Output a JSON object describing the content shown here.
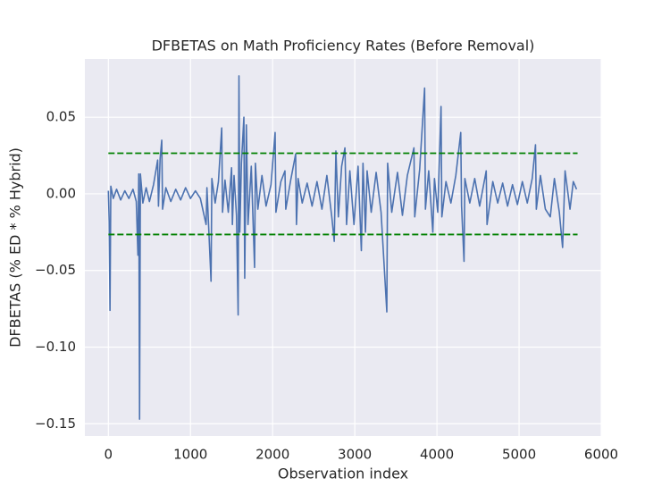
{
  "chart_data": {
    "type": "line",
    "title": "DFBETAS on Math Proficiency Rates (Before Removal)",
    "x_label": "Observation index",
    "y_label": "DFBETAS (% ED * % Hybrid)",
    "x": [
      0,
      10,
      20,
      30,
      60,
      100,
      150,
      200,
      250,
      300,
      340,
      360,
      370,
      380,
      390,
      420,
      460,
      500,
      550,
      600,
      610,
      630,
      650,
      660,
      700,
      760,
      820,
      880,
      940,
      1000,
      1060,
      1120,
      1190,
      1200,
      1250,
      1260,
      1300,
      1340,
      1380,
      1390,
      1420,
      1460,
      1500,
      1510,
      1530,
      1560,
      1580,
      1590,
      1600,
      1620,
      1650,
      1660,
      1680,
      1700,
      1740,
      1780,
      1790,
      1820,
      1870,
      1920,
      1980,
      2030,
      2040,
      2100,
      2150,
      2160,
      2220,
      2280,
      2290,
      2310,
      2360,
      2420,
      2480,
      2540,
      2600,
      2660,
      2720,
      2750,
      2770,
      2800,
      2840,
      2880,
      2900,
      2940,
      2990,
      3040,
      3080,
      3100,
      3130,
      3150,
      3200,
      3260,
      3320,
      3390,
      3400,
      3450,
      3520,
      3580,
      3640,
      3720,
      3730,
      3790,
      3850,
      3860,
      3900,
      3950,
      3970,
      4010,
      4050,
      4060,
      4110,
      4170,
      4230,
      4290,
      4300,
      4330,
      4340,
      4400,
      4460,
      4520,
      4600,
      4610,
      4680,
      4740,
      4800,
      4860,
      4920,
      4980,
      5040,
      5100,
      5160,
      5200,
      5210,
      5260,
      5320,
      5380,
      5430,
      5490,
      5530,
      5560,
      5620,
      5660,
      5700
    ],
    "series": [
      {
        "color": "#4c72b0",
        "values": [
          0.002,
          -0.018,
          -0.076,
          0.005,
          -0.003,
          0.003,
          -0.004,
          0.002,
          -0.003,
          0.003,
          -0.005,
          -0.04,
          0.013,
          -0.147,
          0.013,
          -0.006,
          0.004,
          -0.005,
          0.006,
          0.022,
          -0.008,
          0.023,
          0.035,
          -0.01,
          0.004,
          -0.005,
          0.003,
          -0.004,
          0.004,
          -0.003,
          0.002,
          -0.003,
          -0.02,
          0.004,
          -0.057,
          0.01,
          -0.006,
          0.008,
          0.043,
          -0.012,
          0.009,
          -0.012,
          0.017,
          -0.02,
          0.012,
          -0.014,
          -0.079,
          0.077,
          -0.025,
          0.02,
          0.05,
          -0.055,
          0.045,
          -0.02,
          0.018,
          -0.048,
          0.02,
          -0.01,
          0.012,
          -0.008,
          0.006,
          0.04,
          -0.012,
          0.008,
          0.015,
          -0.01,
          0.009,
          0.026,
          -0.02,
          0.01,
          -0.006,
          0.007,
          -0.008,
          0.008,
          -0.01,
          0.012,
          -0.015,
          -0.031,
          0.028,
          -0.015,
          0.018,
          0.03,
          -0.02,
          0.015,
          -0.02,
          0.018,
          -0.037,
          0.02,
          -0.025,
          0.015,
          -0.012,
          0.014,
          -0.012,
          -0.077,
          0.02,
          -0.012,
          0.014,
          -0.014,
          0.012,
          0.03,
          -0.015,
          0.016,
          0.069,
          -0.01,
          0.015,
          -0.025,
          0.01,
          -0.012,
          0.057,
          -0.015,
          0.008,
          -0.006,
          0.012,
          0.04,
          -0.008,
          -0.044,
          0.01,
          -0.006,
          0.01,
          -0.008,
          0.015,
          -0.02,
          0.008,
          -0.006,
          0.007,
          -0.008,
          0.006,
          -0.007,
          0.008,
          -0.006,
          0.01,
          0.032,
          -0.01,
          0.012,
          -0.01,
          -0.015,
          0.01,
          -0.012,
          -0.035,
          0.015,
          -0.01,
          0.008,
          0.003
        ]
      }
    ],
    "thresholds": {
      "values": [
        0.0265,
        -0.0265
      ],
      "x_range": [
        0,
        5712
      ],
      "color": "green"
    },
    "xlim": [
      -286,
      6000
    ],
    "ylim": [
      -0.158,
      0.088
    ],
    "xticks": [
      0,
      1000,
      2000,
      3000,
      4000,
      5000,
      6000
    ],
    "yticks": [
      {
        "value": -0.15,
        "label": "−0.15"
      },
      {
        "value": -0.1,
        "label": "−0.10"
      },
      {
        "value": -0.05,
        "label": "−0.05"
      },
      {
        "value": 0,
        "label": "0.00"
      },
      0.05
    ],
    "grid": true
  }
}
